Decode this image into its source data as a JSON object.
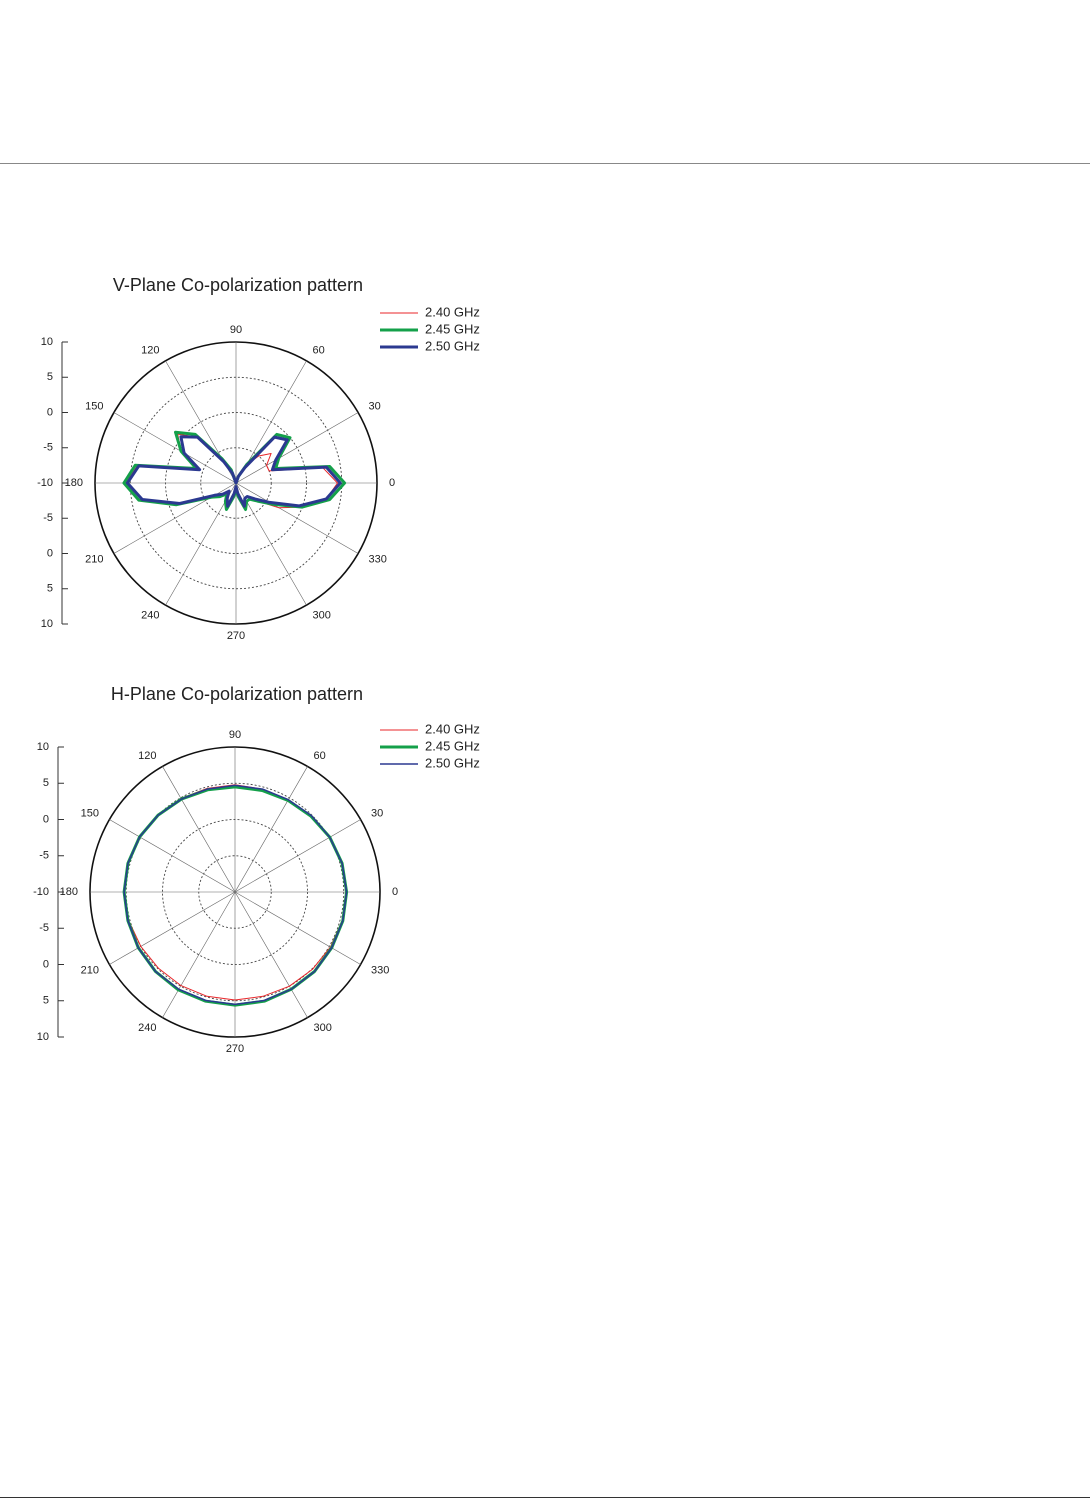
{
  "chart_data": [
    {
      "type": "polar",
      "title": "V-Plane Co-polarization pattern",
      "theta": [
        0,
        10,
        20,
        30,
        40,
        50,
        60,
        70,
        80,
        90,
        100,
        110,
        120,
        130,
        140,
        150,
        160,
        170,
        180,
        190,
        200,
        210,
        220,
        230,
        240,
        250,
        260,
        270,
        280,
        290,
        300,
        310,
        320,
        330,
        340,
        350
      ],
      "series": [
        {
          "name": "2.40 GHz",
          "color": "#e8262a",
          "width": 1,
          "values": [
            4.4,
            2.5,
            -5,
            -5,
            -3.5,
            -5,
            -7,
            -9,
            -10,
            -10,
            -10,
            -8,
            -6,
            -1.5,
            0.8,
            -1,
            -4,
            4.2,
            5.6,
            4,
            -1,
            -6,
            -7,
            -8,
            -7,
            -6,
            -8,
            -9,
            -8,
            -6,
            -7,
            -7,
            -6,
            -3,
            0,
            3
          ]
        },
        {
          "name": "2.45 GHz",
          "color": "#14a04a",
          "width": 3,
          "values": [
            5.4,
            3.5,
            -4,
            -3,
            0,
            -1,
            -7,
            -9,
            -10,
            -10,
            -10,
            -8,
            -6,
            -1,
            1.2,
            -1,
            -4,
            4.5,
            5.9,
            4,
            -1,
            -6,
            -7,
            -8,
            -7,
            -6,
            -8,
            -9,
            -8,
            -6,
            -7,
            -7,
            -6,
            -4,
            0,
            3.5
          ]
        },
        {
          "name": "2.50 GHz",
          "color": "#2b3990",
          "width": 3,
          "values": [
            4.8,
            3,
            -4.5,
            -3.5,
            -0.5,
            -1.5,
            -7.5,
            -9,
            -10,
            -10,
            -10,
            -8.5,
            -6.5,
            -1.5,
            0.2,
            -1.5,
            -4.5,
            4,
            5.4,
            3.5,
            -1.5,
            -6.5,
            -7.5,
            -8.5,
            -7.5,
            -6.5,
            -8.5,
            -9.5,
            -8.5,
            -6.5,
            -7.5,
            -7.5,
            -6.5,
            -4.5,
            -0.5,
            3
          ]
        }
      ],
      "rlim": [
        -10,
        10
      ],
      "rticks": [
        -10,
        -5,
        0,
        5,
        10
      ],
      "thetaticks": [
        0,
        30,
        60,
        90,
        120,
        150,
        180,
        210,
        240,
        270,
        300,
        330
      ],
      "grid": true
    },
    {
      "type": "polar",
      "title": "H-Plane Co-polarization pattern",
      "theta": [
        0,
        15,
        30,
        45,
        60,
        75,
        90,
        105,
        120,
        135,
        150,
        165,
        180,
        195,
        210,
        225,
        240,
        255,
        270,
        285,
        300,
        315,
        330,
        345
      ],
      "series": [
        {
          "name": "2.40 GHz",
          "color": "#e8262a",
          "width": 1,
          "values": [
            5.3,
            5.2,
            5.0,
            4.8,
            4.7,
            4.7,
            4.8,
            4.8,
            4.9,
            5.0,
            5.1,
            5.2,
            5.3,
            5.2,
            5.0,
            4.9,
            4.9,
            4.9,
            4.9,
            4.9,
            5.0,
            5.1,
            5.2,
            5.3
          ]
        },
        {
          "name": "2.45 GHz",
          "color": "#14a04a",
          "width": 3,
          "values": [
            5.4,
            5.3,
            5.1,
            4.8,
            4.6,
            4.5,
            4.5,
            4.6,
            4.8,
            5.0,
            5.2,
            5.3,
            5.3,
            5.3,
            5.4,
            5.5,
            5.6,
            5.6,
            5.6,
            5.6,
            5.5,
            5.5,
            5.4,
            5.4
          ]
        },
        {
          "name": "2.50 GHz",
          "color": "#2b3990",
          "width": 1.5,
          "values": [
            5.4,
            5.3,
            5.1,
            4.9,
            4.7,
            4.7,
            4.7,
            4.7,
            4.8,
            5.0,
            5.2,
            5.3,
            5.3,
            5.3,
            5.4,
            5.5,
            5.5,
            5.5,
            5.5,
            5.5,
            5.5,
            5.5,
            5.4,
            5.4
          ]
        }
      ],
      "rlim": [
        -10,
        10
      ],
      "rticks": [
        -10,
        -5,
        0,
        5,
        10
      ],
      "thetaticks": [
        0,
        30,
        60,
        90,
        120,
        150,
        180,
        210,
        240,
        270,
        300,
        330
      ],
      "grid": true
    }
  ]
}
